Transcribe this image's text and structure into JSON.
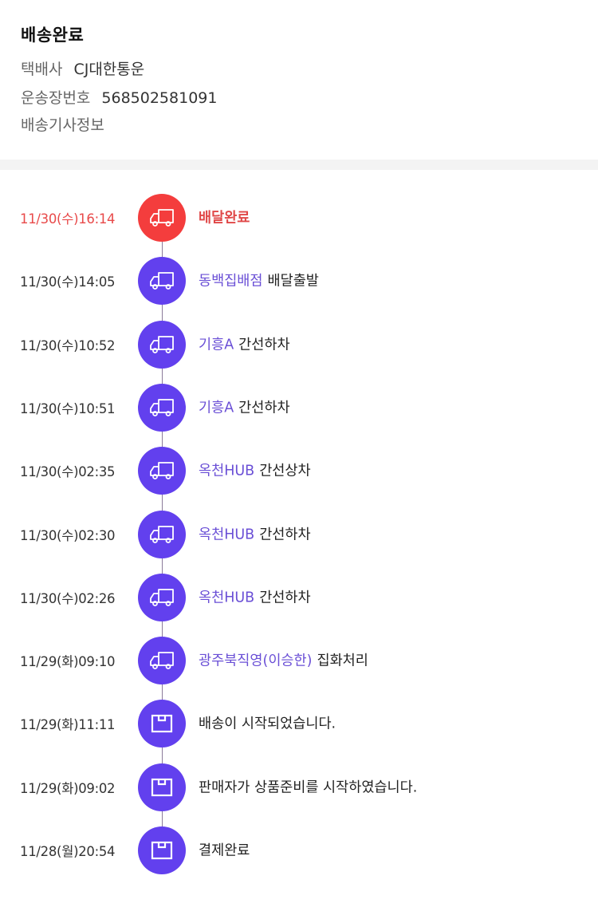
{
  "header": {
    "title": "배송완료",
    "courier_label": "택배사",
    "courier_value": "CJ대한통운",
    "tracking_label": "운송장번호",
    "tracking_value": "568502581091",
    "driver_info_label": "배송기사정보"
  },
  "colors": {
    "accent": "#6240ee",
    "active": "#f43d3d",
    "location_text": "#6a4fd6"
  },
  "timeline": [
    {
      "date": "11/30(수)16:14",
      "location": "",
      "status": "배달완료",
      "icon": "truck-icon",
      "active": true
    },
    {
      "date": "11/30(수)14:05",
      "location": "동백집배점",
      "status": "배달출발",
      "icon": "truck-icon"
    },
    {
      "date": "11/30(수)10:52",
      "location": "기흥A",
      "status": "간선하차",
      "icon": "truck-icon"
    },
    {
      "date": "11/30(수)10:51",
      "location": "기흥A",
      "status": "간선하차",
      "icon": "truck-icon"
    },
    {
      "date": "11/30(수)02:35",
      "location": "옥천HUB",
      "status": "간선상차",
      "icon": "truck-icon"
    },
    {
      "date": "11/30(수)02:30",
      "location": "옥천HUB",
      "status": "간선하차",
      "icon": "truck-icon"
    },
    {
      "date": "11/30(수)02:26",
      "location": "옥천HUB",
      "status": "간선하차",
      "icon": "truck-icon"
    },
    {
      "date": "11/29(화)09:10",
      "location": "광주북직영(이승한)",
      "status": "집화처리",
      "icon": "truck-icon"
    },
    {
      "date": "11/29(화)11:11",
      "location": "",
      "status": "배송이 시작되었습니다.",
      "icon": "box-icon"
    },
    {
      "date": "11/29(화)09:02",
      "location": "",
      "status": "판매자가 상품준비를 시작하였습니다.",
      "icon": "box-icon"
    },
    {
      "date": "11/28(월)20:54",
      "location": "",
      "status": "결제완료",
      "icon": "box-icon"
    }
  ]
}
